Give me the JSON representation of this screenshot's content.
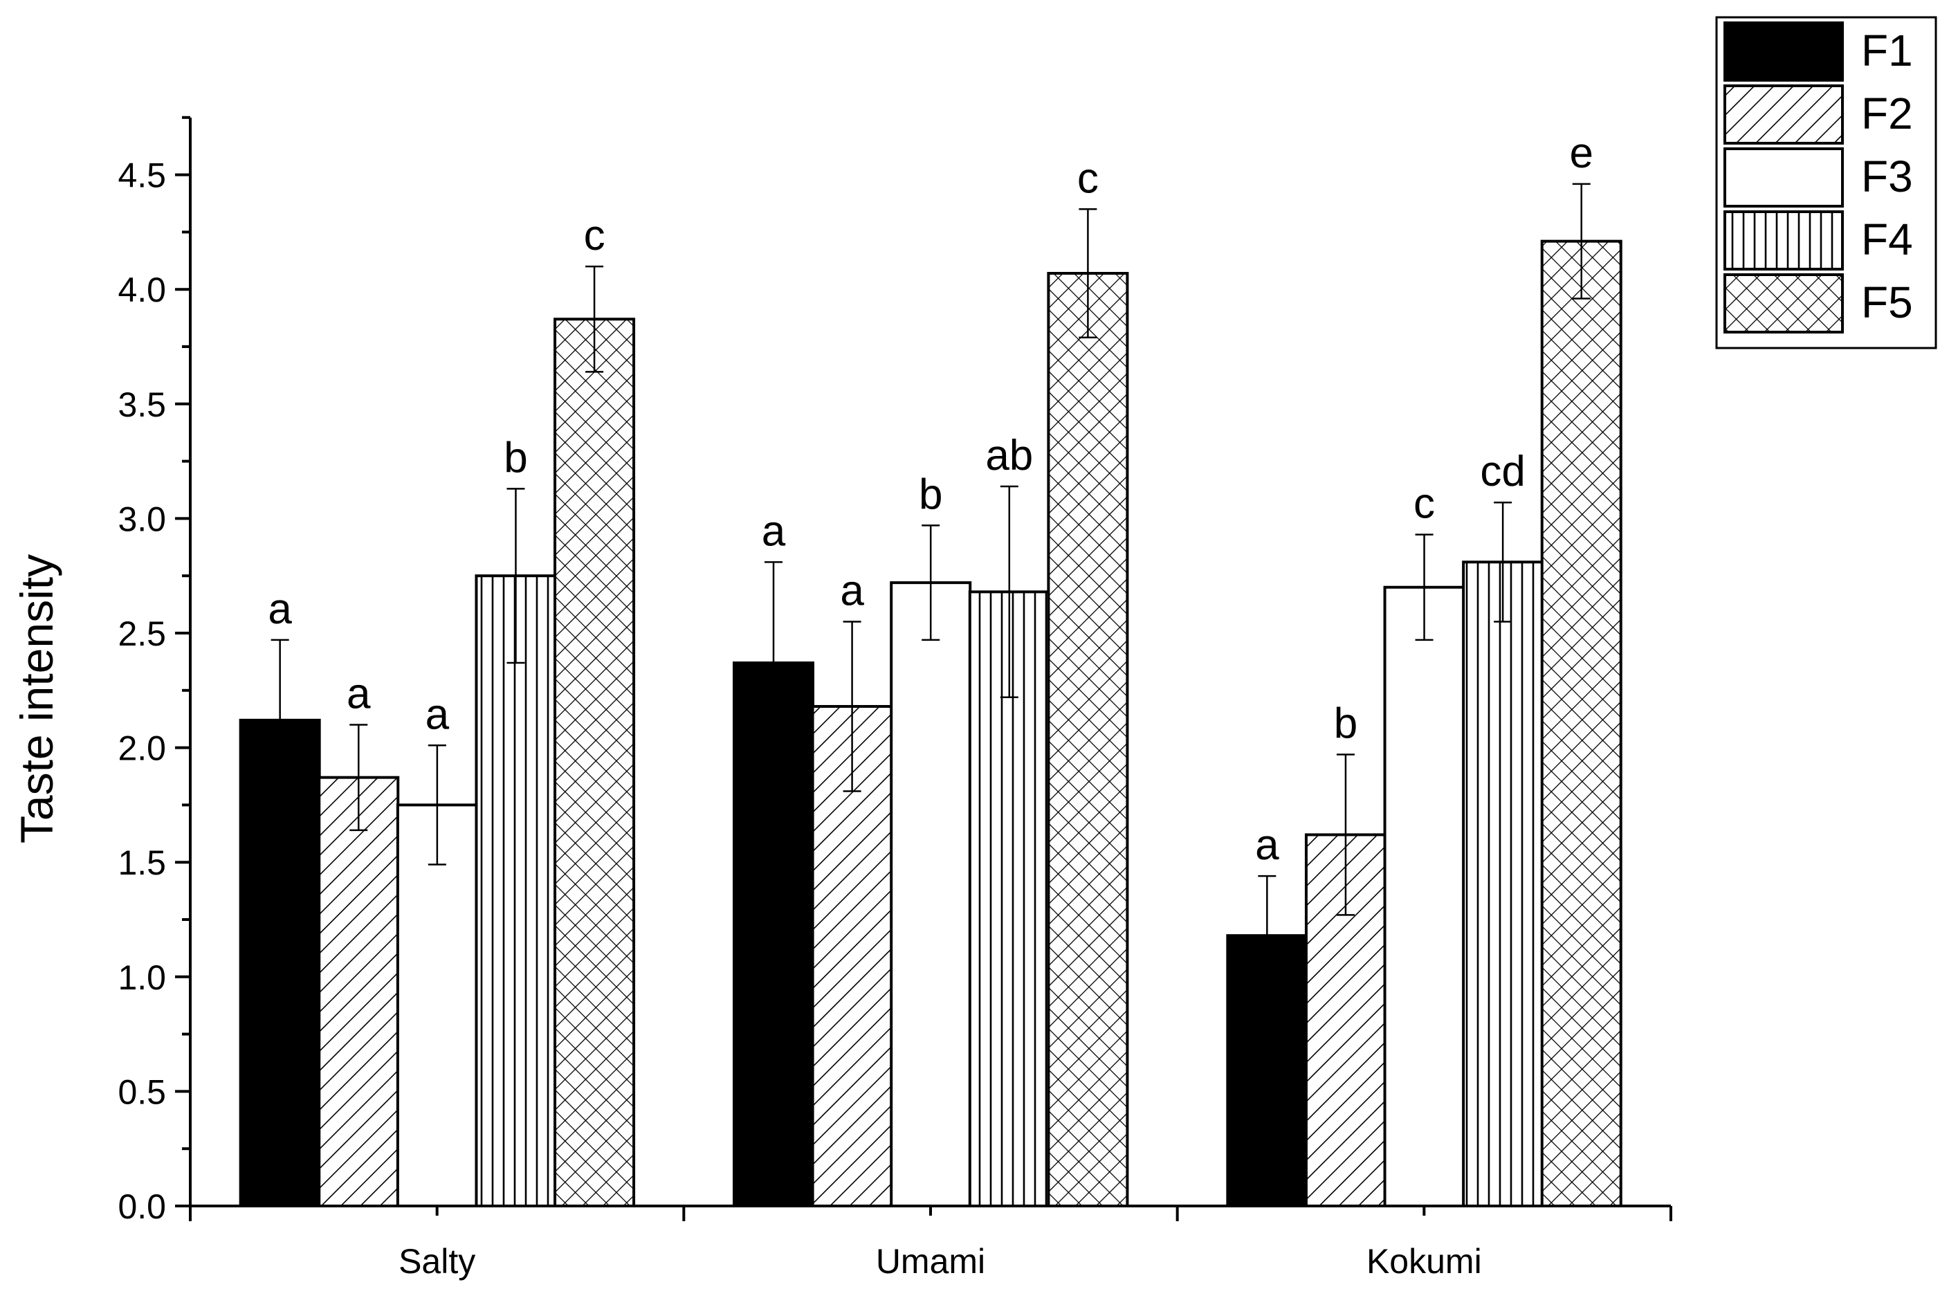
{
  "chart_data": {
    "type": "bar",
    "title": "",
    "xlabel": "",
    "ylabel": "Taste intensity",
    "ylim": [
      0,
      4.75
    ],
    "yticks": [
      "0.0",
      "0.5",
      "1.0",
      "1.5",
      "2.0",
      "2.5",
      "3.0",
      "3.5",
      "4.0",
      "4.5"
    ],
    "categories": [
      "Salty",
      "Umami",
      "Kokumi"
    ],
    "legend_position": "top-right",
    "series": [
      {
        "name": "F1",
        "pattern": "solid-black",
        "values": [
          2.12,
          2.37,
          1.18
        ],
        "errors": [
          0.35,
          0.44,
          0.26
        ],
        "labels": [
          "a",
          "a",
          "a"
        ]
      },
      {
        "name": "F2",
        "pattern": "diagonal-hatch",
        "values": [
          1.87,
          2.18,
          1.62
        ],
        "errors": [
          0.23,
          0.37,
          0.35
        ],
        "labels": [
          "a",
          "a",
          "b"
        ]
      },
      {
        "name": "F3",
        "pattern": "white",
        "values": [
          1.75,
          2.72,
          2.7
        ],
        "errors": [
          0.26,
          0.25,
          0.23
        ],
        "labels": [
          "a",
          "b",
          "c"
        ]
      },
      {
        "name": "F4",
        "pattern": "vertical-lines",
        "values": [
          2.75,
          2.68,
          2.81
        ],
        "errors": [
          0.38,
          0.46,
          0.26
        ],
        "labels": [
          "b",
          "ab",
          "cd"
        ]
      },
      {
        "name": "F5",
        "pattern": "crosshatch",
        "values": [
          3.87,
          4.07,
          4.21
        ],
        "errors": [
          0.23,
          0.28,
          0.25
        ],
        "labels": [
          "c",
          "c",
          "e"
        ]
      }
    ]
  }
}
